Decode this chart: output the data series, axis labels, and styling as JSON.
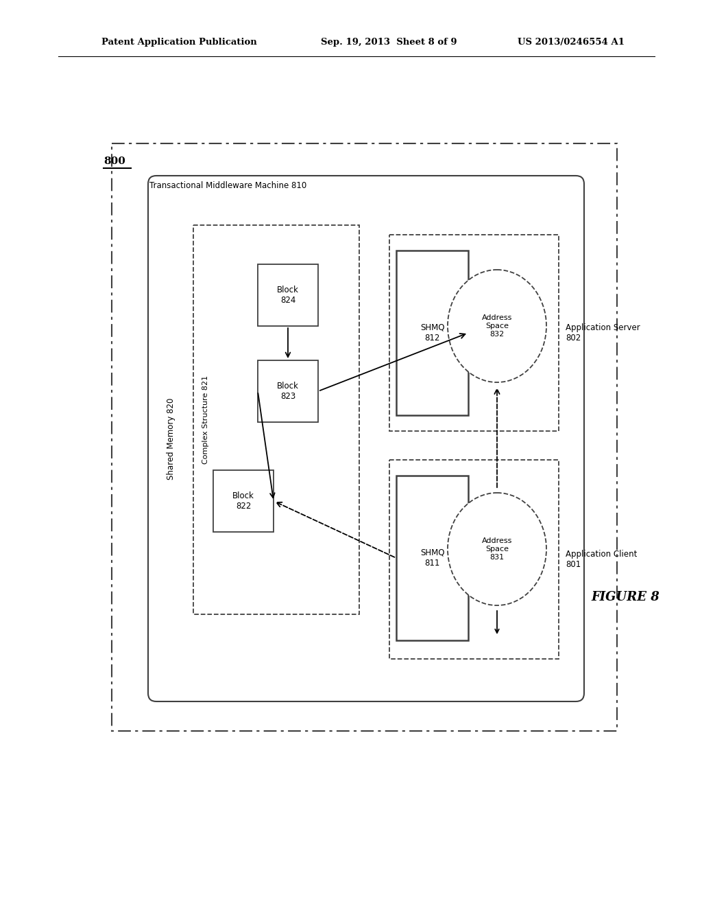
{
  "bg_color": "#ffffff",
  "header_left": "Patent Application Publication",
  "header_mid": "Sep. 19, 2013  Sheet 8 of 9",
  "header_right": "US 2013/0246554 A1",
  "fig_label": "800",
  "figure_caption": "FIGURE 8",
  "outer_box_label": "Transactional Middleware Machine 810",
  "inner_rounded_box_label": "Shared Memory 820",
  "complex_struct_label": "Complex Structure 821",
  "app_server_label": "Application Server\n802",
  "app_client_label": "Application Client\n801",
  "shmq_812_label": "SHMQ\n812",
  "shmq_811_label": "SHMQ\n811",
  "addr_832_label": "Address\nSpace\n832",
  "addr_831_label": "Address\nSpace\n831",
  "block_822_label": "Block\n822",
  "block_823_label": "Block\n823",
  "block_824_label": "Block\n824"
}
